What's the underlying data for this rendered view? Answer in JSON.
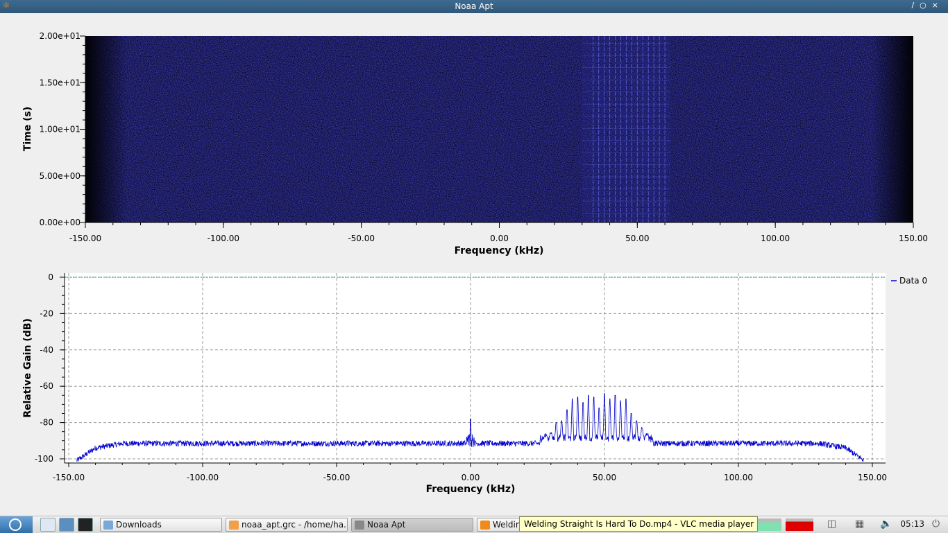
{
  "window": {
    "title": "Noaa Apt"
  },
  "chart_data": [
    {
      "type": "heatmap",
      "title": "",
      "xlabel": "Frequency (kHz)",
      "ylabel": "Time (s)",
      "xlim": [
        -150,
        150
      ],
      "ylim": [
        0,
        20
      ],
      "xticks": [
        "-150.00",
        "-100.00",
        "-50.00",
        "0.00",
        "50.00",
        "100.00",
        "150.00"
      ],
      "yticks": [
        "0.00e+00",
        "5.00e+00",
        "1.00e+01",
        "1.50e+01",
        "2.00e+01"
      ],
      "colormap": [
        "#000000",
        "#0d0d4a",
        "#2a2aa8",
        "#6f7dff"
      ],
      "signal_band": [
        30,
        62
      ],
      "signal_lines": [
        34,
        36,
        38,
        40,
        42,
        44,
        46,
        48,
        50,
        52,
        54,
        56,
        58,
        60
      ]
    },
    {
      "type": "line",
      "title": "",
      "xlabel": "Frequency (kHz)",
      "ylabel": "Relative Gain (dB)",
      "xlim": [
        -150,
        150
      ],
      "ylim": [
        -100,
        0
      ],
      "xticks": [
        "-150.00",
        "-100.00",
        "-50.00",
        "0.00",
        "50.00",
        "100.00",
        "150.00"
      ],
      "yticks": [
        "0",
        "-20",
        "-40",
        "-60",
        "-80",
        "-100"
      ],
      "grid": true,
      "legend_position": "right",
      "series": [
        {
          "name": "Data 0",
          "color": "#0000cc",
          "noise_floor": -91,
          "edges": [
            [
              -147,
              -101
            ],
            [
              -140,
              -94
            ],
            [
              -130,
              -91.5
            ],
            [
              130,
              -91.5
            ],
            [
              140,
              -94
            ],
            [
              147,
              -101
            ]
          ],
          "dc_spike": [
            0,
            -78
          ],
          "peaks": [
            {
              "x": 28,
              "y": -88
            },
            {
              "x": 30,
              "y": -86
            },
            {
              "x": 32,
              "y": -80
            },
            {
              "x": 34,
              "y": -79
            },
            {
              "x": 36,
              "y": -73
            },
            {
              "x": 38,
              "y": -67
            },
            {
              "x": 40,
              "y": -66
            },
            {
              "x": 42,
              "y": -69
            },
            {
              "x": 44,
              "y": -65
            },
            {
              "x": 46,
              "y": -66
            },
            {
              "x": 48,
              "y": -72
            },
            {
              "x": 50,
              "y": -64
            },
            {
              "x": 52,
              "y": -67
            },
            {
              "x": 54,
              "y": -65
            },
            {
              "x": 56,
              "y": -68
            },
            {
              "x": 58,
              "y": -67
            },
            {
              "x": 60,
              "y": -75
            },
            {
              "x": 62,
              "y": -79
            },
            {
              "x": 64,
              "y": -83
            },
            {
              "x": 66,
              "y": -87
            }
          ]
        }
      ],
      "reference_line": {
        "y": 0,
        "color": "#008b8b"
      }
    }
  ],
  "taskbar": {
    "tasks": [
      {
        "label": "Downloads",
        "icon": "folder-icon"
      },
      {
        "label": "noaa_apt.grc - /home/ha...",
        "icon": "gnuradio-icon"
      },
      {
        "label": "Noaa Apt",
        "icon": "gnuradio-icon",
        "active": true
      },
      {
        "label": "Welding",
        "icon": "vlc-icon"
      }
    ],
    "tooltip": "Welding Straight Is Hard To Do.mp4 - VLC media player",
    "clock": "05:13"
  }
}
